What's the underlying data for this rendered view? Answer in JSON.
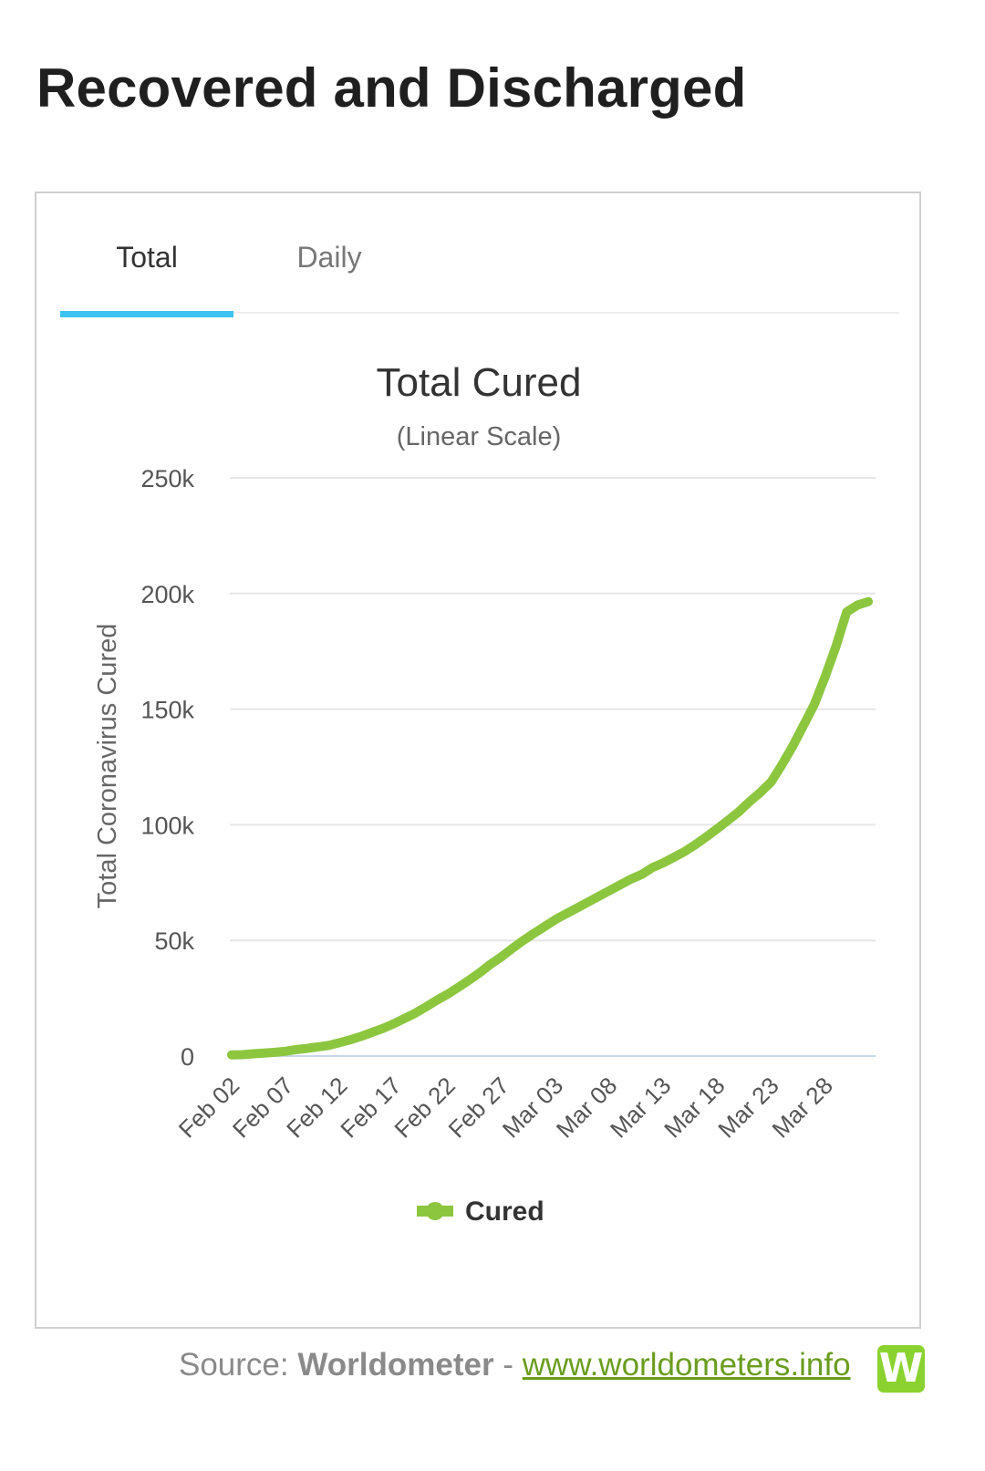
{
  "page": {
    "heading": "Recovered and Discharged"
  },
  "tabs": [
    {
      "label": "Total",
      "active": true
    },
    {
      "label": "Daily",
      "active": false
    }
  ],
  "colors": {
    "series": "#8cc63f",
    "tab_indicator": "#3cc4ee",
    "link": "#6a9c1e",
    "grid": "#e6e6e6",
    "axis": "#c9d6ea"
  },
  "chart_data": {
    "type": "line",
    "title": "Total Cured",
    "subtitle": "(Linear Scale)",
    "ylabel": "Total Coronavirus Cured",
    "xlabel": "",
    "ylim": [
      0,
      250000
    ],
    "yticks": [
      {
        "value": 0,
        "label": "0"
      },
      {
        "value": 50000,
        "label": "50k"
      },
      {
        "value": 100000,
        "label": "100k"
      },
      {
        "value": 150000,
        "label": "150k"
      },
      {
        "value": 200000,
        "label": "200k"
      },
      {
        "value": 250000,
        "label": "250k"
      }
    ],
    "xticks": [
      "Feb 02",
      "Feb 07",
      "Feb 12",
      "Feb 17",
      "Feb 22",
      "Feb 27",
      "Mar 03",
      "Mar 08",
      "Mar 13",
      "Mar 18",
      "Mar 23",
      "Mar 28"
    ],
    "grid": true,
    "legend_position": "bottom-center",
    "series": [
      {
        "name": "Cured",
        "color": "#8cc63f",
        "x": [
          "Feb 02",
          "Feb 03",
          "Feb 04",
          "Feb 05",
          "Feb 06",
          "Feb 07",
          "Feb 08",
          "Feb 09",
          "Feb 10",
          "Feb 11",
          "Feb 12",
          "Feb 13",
          "Feb 14",
          "Feb 15",
          "Feb 16",
          "Feb 17",
          "Feb 18",
          "Feb 19",
          "Feb 20",
          "Feb 21",
          "Feb 22",
          "Feb 23",
          "Feb 24",
          "Feb 25",
          "Feb 26",
          "Feb 27",
          "Feb 28",
          "Feb 29",
          "Mar 01",
          "Mar 02",
          "Mar 03",
          "Mar 04",
          "Mar 05",
          "Mar 06",
          "Mar 07",
          "Mar 08",
          "Mar 09",
          "Mar 10",
          "Mar 11",
          "Mar 12",
          "Mar 13",
          "Mar 14",
          "Mar 15",
          "Mar 16",
          "Mar 17",
          "Mar 18",
          "Mar 19",
          "Mar 20",
          "Mar 21",
          "Mar 22",
          "Mar 23",
          "Mar 24",
          "Mar 25",
          "Mar 26",
          "Mar 27",
          "Mar 28",
          "Mar 29",
          "Mar 30",
          "Mar 31",
          "Apr 01"
        ],
        "values": [
          500,
          600,
          1000,
          1300,
          1600,
          2100,
          2800,
          3300,
          4000,
          4600,
          5800,
          7000,
          8500,
          10200,
          11900,
          13900,
          16200,
          18500,
          21200,
          24100,
          26700,
          29700,
          32800,
          36100,
          39700,
          42900,
          46500,
          49900,
          53000,
          56000,
          59000,
          61500,
          64000,
          66500,
          69000,
          71500,
          74000,
          76500,
          78500,
          81500,
          83500,
          86000,
          88500,
          91500,
          94800,
          98300,
          101900,
          105600,
          110000,
          114000,
          118500,
          126000,
          134000,
          143000,
          152000,
          164000,
          177000,
          192000,
          195000,
          196500
        ]
      }
    ]
  },
  "source": {
    "prefix": "Source: ",
    "name": "Worldometer",
    "separator": " - ",
    "link_text": "www.worldometers.info",
    "logo_letter": "W"
  }
}
